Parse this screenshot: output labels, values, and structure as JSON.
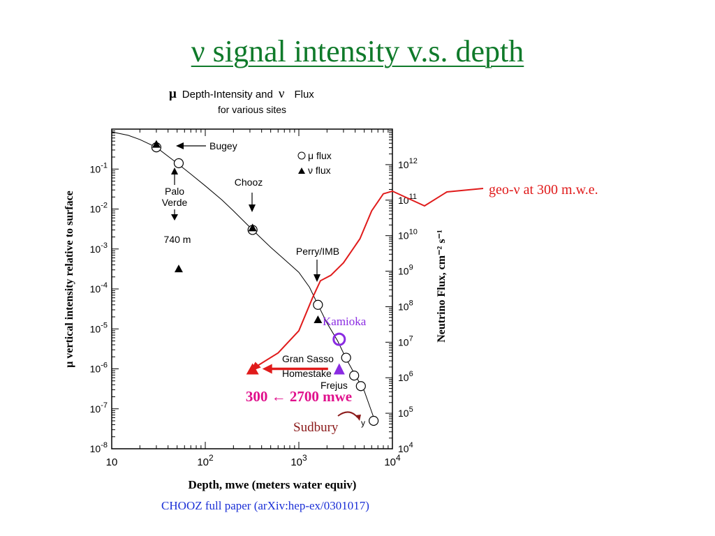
{
  "slide": {
    "title": "ν signal intensity v.s. depth",
    "citation": "CHOOZ full paper (arXiv:hep-ex/0301017)"
  },
  "chart_data": {
    "type": "scatter",
    "title_line1_mu": "μ",
    "title_line1_text": "Depth-Intensity and",
    "title_line1_nu": "ν",
    "title_line1_tail": "Flux",
    "title_line2": "for various sites",
    "xlabel": "Depth, mwe (meters water equiv)",
    "ylabel_left": "μ vertical intensity relative to surface",
    "ylabel_right": "Neutrino Flux, cm⁻² s⁻¹",
    "x_scale": "log",
    "xlim": [
      10,
      10000
    ],
    "ylim_left": [
      1e-08,
      1
    ],
    "ylim_right": [
      10000,
      10000000000000.0
    ],
    "x_ticks": [
      {
        "value": 10,
        "base": "10",
        "exp": ""
      },
      {
        "value": 100,
        "base": "10",
        "exp": "2"
      },
      {
        "value": 1000,
        "base": "10",
        "exp": "3"
      },
      {
        "value": 10000,
        "base": "10",
        "exp": "4"
      }
    ],
    "y_left_ticks": [
      {
        "value": 0.1,
        "base": "10",
        "exp": "-1"
      },
      {
        "value": 0.01,
        "base": "10",
        "exp": "-2"
      },
      {
        "value": 0.001,
        "base": "10",
        "exp": "-3"
      },
      {
        "value": 0.0001,
        "base": "10",
        "exp": "-4"
      },
      {
        "value": 1e-05,
        "base": "10",
        "exp": "-5"
      },
      {
        "value": 1e-06,
        "base": "10",
        "exp": "-6"
      },
      {
        "value": 1e-07,
        "base": "10",
        "exp": "-7"
      },
      {
        "value": 1e-08,
        "base": "10",
        "exp": "-8"
      }
    ],
    "y_right_ticks": [
      {
        "value": 1000000000000.0,
        "base": "10",
        "exp": "12"
      },
      {
        "value": 100000000000.0,
        "base": "10",
        "exp": "11"
      },
      {
        "value": 10000000000.0,
        "base": "10",
        "exp": "10"
      },
      {
        "value": 1000000000.0,
        "base": "10",
        "exp": "9"
      },
      {
        "value": 100000000.0,
        "base": "10",
        "exp": "8"
      },
      {
        "value": 10000000.0,
        "base": "10",
        "exp": "7"
      },
      {
        "value": 1000000.0,
        "base": "10",
        "exp": "6"
      },
      {
        "value": 100000.0,
        "base": "10",
        "exp": "5"
      },
      {
        "value": 10000.0,
        "base": "10",
        "exp": "4"
      }
    ],
    "legend": {
      "placement": "top-right",
      "items": [
        {
          "marker": "circle",
          "label": "μ flux"
        },
        {
          "marker": "triangle",
          "label": "ν flux"
        }
      ]
    },
    "mu_flux_curve": [
      [
        10,
        0.85
      ],
      [
        15,
        0.7
      ],
      [
        20,
        0.55
      ],
      [
        30,
        0.35
      ],
      [
        50,
        0.14
      ],
      [
        70,
        0.075
      ],
      [
        100,
        0.038
      ],
      [
        150,
        0.017
      ],
      [
        200,
        0.009
      ],
      [
        320,
        0.003
      ],
      [
        500,
        0.0011
      ],
      [
        700,
        0.00055
      ],
      [
        1000,
        0.00026
      ],
      [
        1300,
        0.00011
      ],
      [
        1600,
        4e-05
      ],
      [
        2000,
        1.4e-05
      ],
      [
        2600,
        5e-06
      ],
      [
        3200,
        1.8e-06
      ],
      [
        4000,
        7e-07
      ],
      [
        5000,
        2.8e-07
      ],
      [
        6500,
        5e-08
      ]
    ],
    "mu_flux_points": [
      {
        "x": 30,
        "y": 0.35
      },
      {
        "x": 52,
        "y": 0.14
      },
      {
        "x": 320,
        "y": 0.003
      },
      {
        "x": 1600,
        "y": 4e-05
      },
      {
        "x": 3200,
        "y": 1.9e-06
      },
      {
        "x": 3900,
        "y": 6.8e-07
      },
      {
        "x": 4600,
        "y": 3.7e-07
      },
      {
        "x": 6300,
        "y": 5e-08
      }
    ],
    "nu_flux_points": [
      {
        "x": 30,
        "y": 0.42
      },
      {
        "x": 52,
        "y": 0.00032
      },
      {
        "x": 320,
        "y": 0.0034
      },
      {
        "x": 1600,
        "y": 1.7e-05
      }
    ],
    "site_labels": [
      {
        "name": "Bugey"
      },
      {
        "name": "Palo"
      },
      {
        "name": "Verde"
      },
      {
        "name": "740 m"
      },
      {
        "name": "Chooz"
      },
      {
        "name": "Perry/IMB"
      },
      {
        "name": "Gran Sasso"
      },
      {
        "name": "Homestake"
      },
      {
        "name": "Frejus"
      },
      {
        "name": "y"
      }
    ],
    "geo_nu_curve": {
      "color": "#e01b1b",
      "label": "geo-ν at 300 m.w.e.",
      "points": [
        [
          320,
          1e-06
        ],
        [
          600,
          2.5e-06
        ],
        [
          1000,
          9e-06
        ],
        [
          1400,
          6e-05
        ],
        [
          1700,
          0.00016
        ],
        [
          2200,
          0.00022
        ],
        [
          3000,
          0.00045
        ],
        [
          4500,
          0.0018
        ],
        [
          6000,
          0.009
        ],
        [
          8000,
          0.024
        ],
        [
          10000,
          0.028
        ]
      ]
    },
    "kamioka": {
      "label": "Kamioka",
      "x": 2700,
      "y": 5.5e-06,
      "color": "#8a2be2"
    },
    "arrow_point": {
      "label": "300 ← 2700 mwe",
      "from_x": 2700,
      "to_x": 320,
      "y": 1e-06,
      "color": "#e01b1b",
      "label_color": "#e0108c"
    },
    "sudbury": {
      "label": "Sudbury",
      "color": "#8b1a1a"
    }
  }
}
